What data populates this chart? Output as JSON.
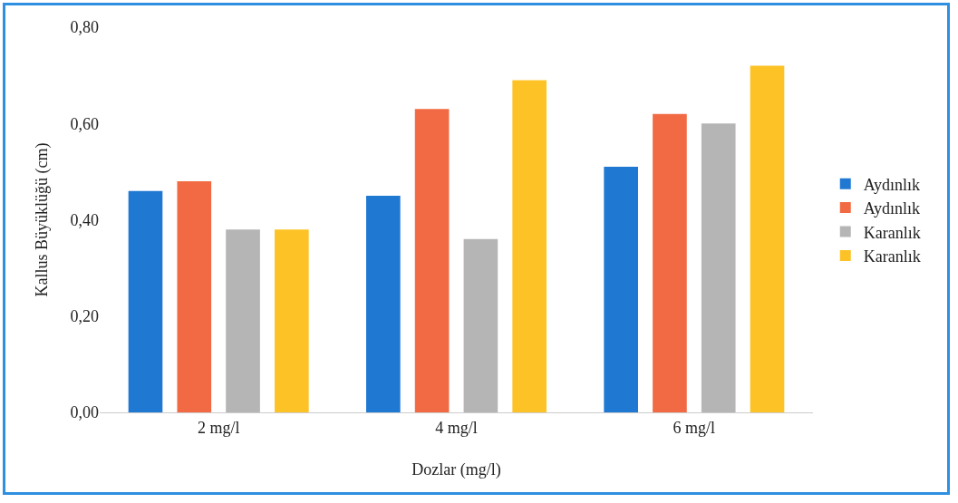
{
  "chart_data": {
    "type": "bar",
    "xlabel": "Dozlar (mg/l)",
    "ylabel": "Kallus Büyüklüğü (cm)",
    "categories": [
      "2 mg/l",
      "4 mg/l",
      "6 mg/l"
    ],
    "series": [
      {
        "name": "Aydınlık",
        "color": "#1f78d2",
        "values": [
          0.46,
          0.45,
          0.51
        ]
      },
      {
        "name": "Aydınlık",
        "color": "#f26a43",
        "values": [
          0.48,
          0.63,
          0.62
        ]
      },
      {
        "name": "Karanlık",
        "color": "#b5b5b5",
        "values": [
          0.38,
          0.36,
          0.6
        ]
      },
      {
        "name": "Karanlık",
        "color": "#fdc326",
        "values": [
          0.38,
          0.69,
          0.72
        ]
      }
    ],
    "ylim": [
      0,
      0.8
    ],
    "yticks": [
      {
        "value": 0,
        "label": "0,00"
      },
      {
        "value": 0.2,
        "label": "0,20"
      },
      {
        "value": 0.4,
        "label": "0,40"
      },
      {
        "value": 0.6,
        "label": "0,60"
      },
      {
        "value": 0.8,
        "label": "0,80"
      }
    ],
    "grid": false,
    "legend": "right"
  }
}
